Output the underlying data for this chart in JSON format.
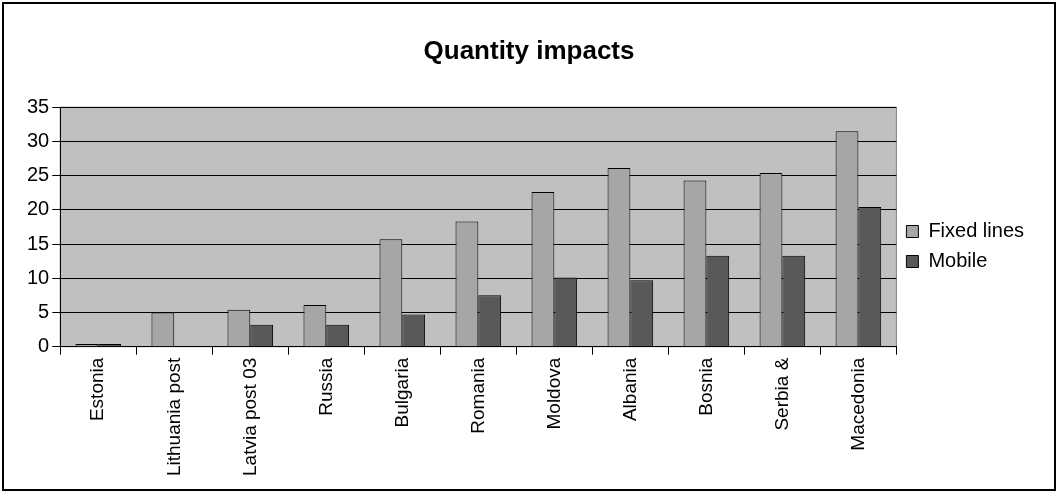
{
  "chart_data": {
    "type": "bar",
    "title": "Quantity impacts",
    "categories": [
      "Estonia",
      "Lithuania post",
      "Latvia post 03",
      "Russia",
      "Bulgaria",
      "Romania",
      "Moldova",
      "Albania",
      "Bosnia",
      "Serbia &",
      "Macedonia"
    ],
    "series": [
      {
        "name": "Fixed lines",
        "color": "#a6a6a6",
        "values": [
          0.4,
          5,
          5.4,
          6.1,
          15.7,
          18.3,
          22.6,
          26.1,
          24.3,
          25.4,
          31.5
        ]
      },
      {
        "name": "Mobile",
        "color": "#595959",
        "values": [
          0.4,
          null,
          3.2,
          3.2,
          4.7,
          7.5,
          10.1,
          9.7,
          13.3,
          13.3,
          20.4
        ]
      }
    ],
    "ylim": [
      0,
      35
    ],
    "yticks": [
      0,
      5,
      10,
      15,
      20,
      25,
      30,
      35
    ],
    "grid": "y",
    "legend": "right"
  }
}
